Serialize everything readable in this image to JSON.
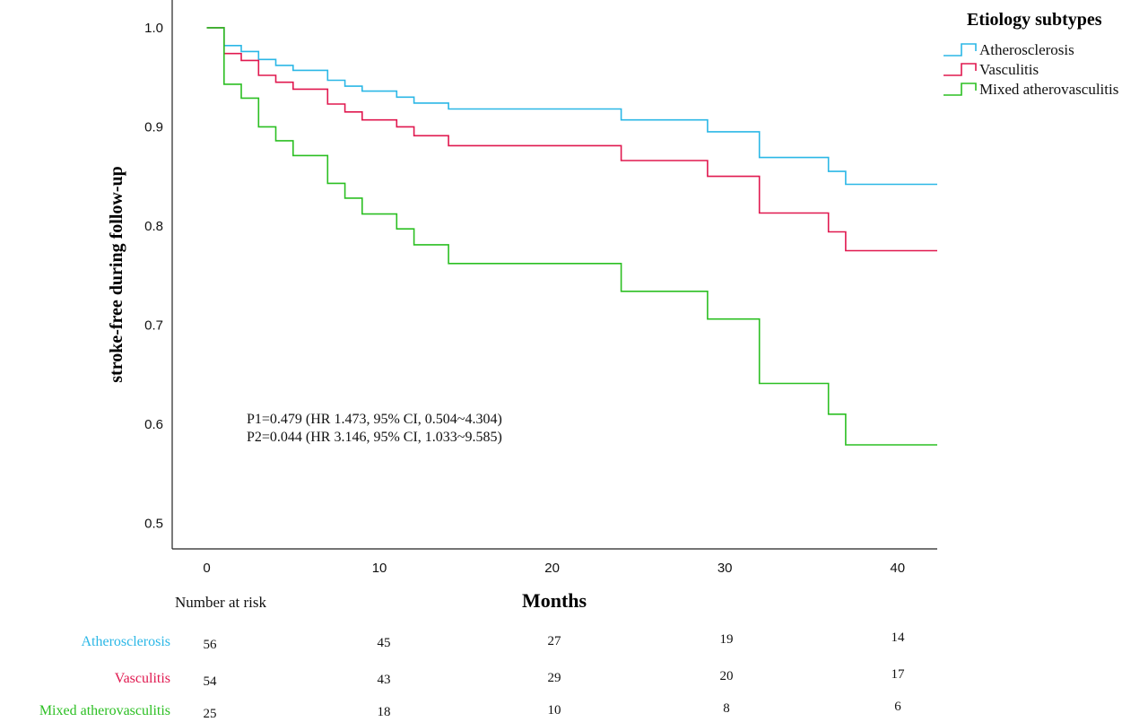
{
  "chart_data": {
    "type": "line",
    "ylabel": "stroke-free during follow-up",
    "xlabel": "Months",
    "xlim": [
      -2,
      42.3
    ],
    "ylim": [
      0.474,
      1.028
    ],
    "x_ticks": [
      0,
      10,
      20,
      30,
      40
    ],
    "y_ticks": [
      0.5,
      0.6,
      0.7,
      0.8,
      0.9,
      1.0
    ],
    "y_tick_labels": [
      "0.5",
      "0.6",
      "0.7",
      "0.8",
      "0.9",
      "1.0"
    ],
    "grid": false,
    "step": true,
    "legend": {
      "title": "Etiology subtypes",
      "placement": "top-right"
    },
    "series": [
      {
        "name": "Atherosclerosis",
        "color": "#2bb7e6",
        "points": [
          [
            0,
            1.0
          ],
          [
            1,
            0.982
          ],
          [
            2,
            0.976
          ],
          [
            3,
            0.968
          ],
          [
            4,
            0.962
          ],
          [
            5,
            0.957
          ],
          [
            7,
            0.947
          ],
          [
            8,
            0.941
          ],
          [
            9,
            0.936
          ],
          [
            11,
            0.93
          ],
          [
            12,
            0.924
          ],
          [
            14,
            0.918
          ],
          [
            24,
            0.907
          ],
          [
            29,
            0.895
          ],
          [
            32,
            0.869
          ],
          [
            36,
            0.855
          ],
          [
            37,
            0.842
          ],
          [
            42.3,
            0.842
          ]
        ]
      },
      {
        "name": "Vasculitis",
        "color": "#e0184f",
        "points": [
          [
            0,
            1.0
          ],
          [
            1,
            0.974
          ],
          [
            2,
            0.967
          ],
          [
            3,
            0.952
          ],
          [
            4,
            0.945
          ],
          [
            5,
            0.938
          ],
          [
            7,
            0.923
          ],
          [
            8,
            0.915
          ],
          [
            9,
            0.907
          ],
          [
            11,
            0.9
          ],
          [
            12,
            0.891
          ],
          [
            14,
            0.881
          ],
          [
            24,
            0.866
          ],
          [
            29,
            0.85
          ],
          [
            32,
            0.813
          ],
          [
            36,
            0.794
          ],
          [
            37,
            0.775
          ],
          [
            42.3,
            0.775
          ]
        ]
      },
      {
        "name": "Mixed atherovasculitis",
        "color": "#2bbf22",
        "points": [
          [
            0,
            1.0
          ],
          [
            1,
            0.943
          ],
          [
            2,
            0.929
          ],
          [
            3,
            0.9
          ],
          [
            4,
            0.886
          ],
          [
            5,
            0.871
          ],
          [
            7,
            0.843
          ],
          [
            8,
            0.828
          ],
          [
            9,
            0.812
          ],
          [
            11,
            0.797
          ],
          [
            12,
            0.781
          ],
          [
            14,
            0.762
          ],
          [
            24,
            0.734
          ],
          [
            29,
            0.706
          ],
          [
            32,
            0.641
          ],
          [
            36,
            0.61
          ],
          [
            37,
            0.579
          ],
          [
            42.3,
            0.579
          ]
        ]
      }
    ],
    "annotations": [
      "P1=0.479 (HR 1.473, 95% CI, 0.504~4.304)",
      "P2=0.044 (HR 3.146, 95% CI, 1.033~9.585)"
    ],
    "risk_table": {
      "heading": "Number at risk",
      "times": [
        0,
        10,
        20,
        30,
        40
      ],
      "rows": [
        {
          "name": "Atherosclerosis",
          "color": "#2bb7e6",
          "values": [
            "56",
            "45",
            "27",
            "19",
            "14"
          ]
        },
        {
          "name": "Vasculitis",
          "color": "#e0184f",
          "values": [
            "54",
            "43",
            "29",
            "20",
            "17"
          ]
        },
        {
          "name": "Mixed atherovasculitis",
          "color": "#2bbf22",
          "values": [
            "25",
            "18",
            "10",
            "8",
            "6"
          ]
        }
      ]
    }
  }
}
